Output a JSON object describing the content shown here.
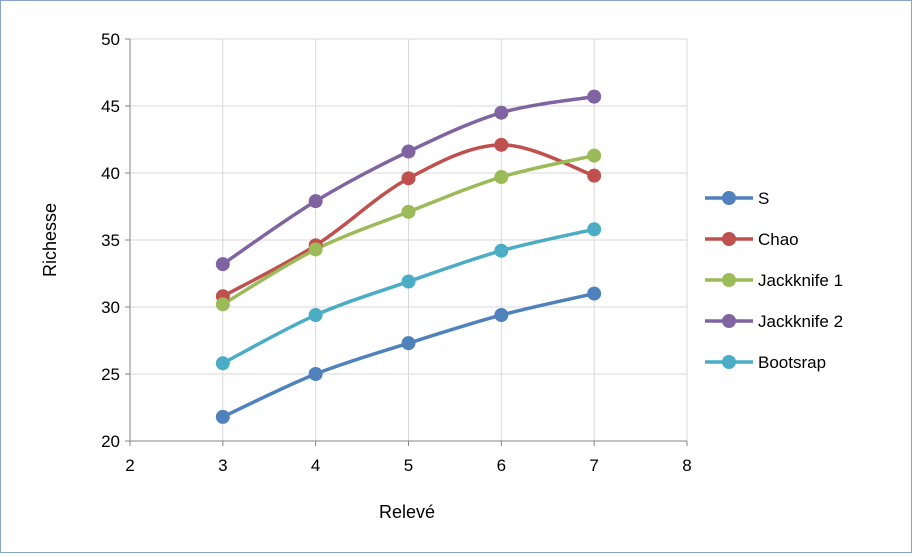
{
  "chart_data": {
    "type": "line",
    "title": "",
    "xlabel": "Relevé",
    "ylabel": "Richesse",
    "xlim": [
      2,
      8
    ],
    "ylim": [
      20,
      50
    ],
    "xticks": [
      2,
      3,
      4,
      5,
      6,
      7,
      8
    ],
    "yticks": [
      20,
      25,
      30,
      35,
      40,
      45,
      50
    ],
    "grid": true,
    "smooth": true,
    "legend_position": "right",
    "x": [
      3,
      4,
      5,
      6,
      7
    ],
    "series": [
      {
        "name": "S",
        "color": "#4f81bd",
        "values": [
          21.8,
          25.0,
          27.3,
          29.4,
          31.0
        ]
      },
      {
        "name": "Chao",
        "color": "#c0504d",
        "values": [
          30.8,
          34.6,
          39.6,
          42.1,
          39.8
        ]
      },
      {
        "name": "Jackknife 1",
        "color": "#9bbb59",
        "values": [
          30.2,
          34.3,
          37.1,
          39.7,
          41.3
        ]
      },
      {
        "name": "Jackknife 2",
        "color": "#8064a2",
        "values": [
          33.2,
          37.9,
          41.6,
          44.5,
          45.7
        ]
      },
      {
        "name": "Bootsrap",
        "color": "#4bacc6",
        "values": [
          25.8,
          29.4,
          31.9,
          34.2,
          35.8
        ]
      }
    ]
  }
}
